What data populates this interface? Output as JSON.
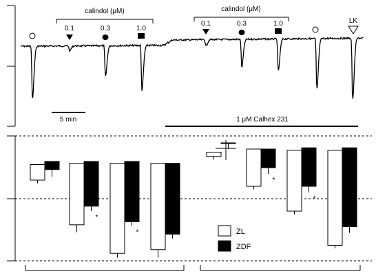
{
  "chart_data": [
    {
      "type": "line",
      "description_role": "tension trace",
      "labels": {
        "bracket_left": "calindol (μM)",
        "bracket_right": "calindol (μM)",
        "doses_left": [
          "0.1",
          "0.3",
          "1.0"
        ],
        "doses_right": [
          "0.1",
          "0.3",
          "1.0"
        ],
        "lk": "LK",
        "scale_bar": "5 min",
        "drug_bar": "1 μM Calhex 231"
      },
      "markers": [
        {
          "label": "",
          "shape": "open-circle",
          "t": 47
        },
        {
          "label": "0.1",
          "shape": "filled-down-triangle",
          "t": 101
        },
        {
          "label": "0.3",
          "shape": "filled-circle",
          "t": 153
        },
        {
          "label": "1.0",
          "shape": "filled-square",
          "t": 205
        },
        {
          "label": "0.1",
          "shape": "filled-down-triangle",
          "t": 299
        },
        {
          "label": "0.3",
          "shape": "filled-circle",
          "t": 351
        },
        {
          "label": "1.0",
          "shape": "filled-square",
          "t": 404
        },
        {
          "label": "",
          "shape": "open-circle",
          "t": 458
        },
        {
          "label": "LK",
          "shape": "open-down-triangle",
          "t": 513
        }
      ],
      "responses": [
        {
          "t": 47,
          "depth": 0.85
        },
        {
          "t": 101,
          "depth": 0.08
        },
        {
          "t": 153,
          "depth": 0.5
        },
        {
          "t": 206,
          "depth": 0.72
        },
        {
          "t": 299,
          "depth": 0.1
        },
        {
          "t": 351,
          "depth": 0.45
        },
        {
          "t": 404,
          "depth": 0.52
        },
        {
          "t": 460,
          "depth": 0.82
        },
        {
          "t": 512,
          "depth": 1.0
        }
      ]
    },
    {
      "type": "bar",
      "legend": [
        {
          "name": "ZL",
          "color": "#ffffff"
        },
        {
          "name": "ZDF",
          "color": "#000000"
        }
      ],
      "ylim": [
        -1,
        1
      ],
      "groups": [
        {
          "ZL": {
            "top": 0.55,
            "bottom": 0.3,
            "err": 0.05
          },
          "ZDF": {
            "top": 0.6,
            "bottom": 0.47,
            "err": 0.12
          },
          "stars": {
            "ZL": false,
            "ZDF": false
          }
        },
        {
          "ZL": {
            "top": 0.57,
            "bottom": -0.42,
            "err": 0.12
          },
          "ZDF": {
            "top": 0.6,
            "bottom": -0.12,
            "err": 0.08
          },
          "stars": {
            "ZL": false,
            "ZDF": true
          }
        },
        {
          "ZL": {
            "top": 0.57,
            "bottom": -0.88,
            "err": 0.07
          },
          "ZDF": {
            "top": 0.6,
            "bottom": -0.37,
            "err": 0.07
          },
          "stars": {
            "ZL": false,
            "ZDF": true
          }
        },
        {
          "ZL": {
            "top": 0.57,
            "bottom": -0.82,
            "err": 0.13
          },
          "ZDF": {
            "top": 0.57,
            "bottom": -0.57,
            "err": 0.07
          },
          "stars": {
            "ZL": false,
            "ZDF": false
          }
        },
        {
          "ZL": {
            "top": 0.75,
            "bottom": 0.68,
            "err": 0.05
          },
          "ZDF": {
            "top": 0.9,
            "bottom": 0.9,
            "err": 0.1
          },
          "stars": {
            "ZL": false,
            "ZDF": false
          }
        },
        {
          "ZL": {
            "top": 0.8,
            "bottom": 0.2,
            "err": 0.05
          },
          "ZDF": {
            "top": 0.8,
            "bottom": 0.5,
            "err": 0.1
          },
          "stars": {
            "ZL": false,
            "ZDF": true
          }
        },
        {
          "ZL": {
            "top": 0.78,
            "bottom": -0.2,
            "err": 0.05
          },
          "ZDF": {
            "top": 0.82,
            "bottom": 0.2,
            "err": 0.1
          },
          "stars": {
            "ZL": false,
            "ZDF": true
          }
        },
        {
          "ZL": {
            "top": 0.78,
            "bottom": -0.75,
            "err": 0.05
          },
          "ZDF": {
            "top": 0.82,
            "bottom": -0.45,
            "err": 0.1
          },
          "stars": {
            "ZL": false,
            "ZDF": false
          }
        }
      ]
    }
  ]
}
